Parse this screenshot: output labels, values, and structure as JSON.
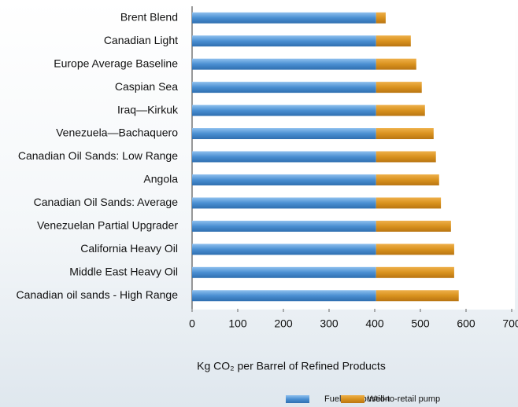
{
  "chart_data": {
    "type": "stacked_barh",
    "xlabel": "Kg CO₂ per Barrel of Refined Products",
    "categories": [
      "Brent Blend",
      "Canadian Light",
      "Europe Average Baseline",
      "Caspian Sea",
      "Iraq—Kirkuk",
      "Venezuela—Bachaquero",
      "Canadian Oil Sands: Low Range",
      "Angola",
      "Canadian Oil Sands: Average",
      "Venezuelan Partial Upgrader",
      "California Heavy Oil",
      "Middle East Heavy Oil",
      "Canadian oil sands - High Range"
    ],
    "series": [
      {
        "name": "Fuel Combustion",
        "color": "#4a8fd2",
        "values": [
          403,
          403,
          403,
          403,
          403,
          403,
          403,
          403,
          403,
          403,
          403,
          403,
          403
        ]
      },
      {
        "name": "Well-to-retail pump",
        "color": "#d9921e",
        "values": [
          21,
          76,
          88,
          100,
          107,
          126,
          131,
          138,
          142,
          164,
          171,
          171,
          181
        ]
      }
    ],
    "xlim": [
      0,
      700
    ],
    "xticks": [
      0,
      100,
      200,
      300,
      400,
      500,
      600,
      700
    ]
  }
}
